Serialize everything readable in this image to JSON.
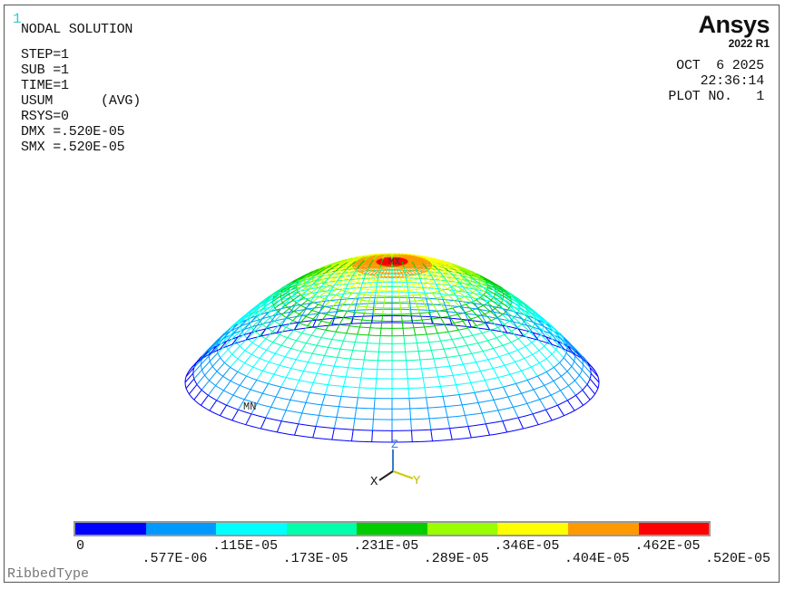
{
  "window_number": "1",
  "title": "NODAL SOLUTION",
  "info": {
    "step": "STEP=1",
    "sub": "SUB =1",
    "time": "TIME=1",
    "usum": "USUM      (AVG)",
    "rsys": "RSYS=0",
    "dmx": "DMX =.520E-05",
    "smx": "SMX =.520E-05"
  },
  "logo": {
    "brand": "Ansys",
    "version": "2022 R1"
  },
  "stamp": {
    "date": "OCT  6 2025",
    "time": "22:36:14",
    "plot": "PLOT NO.   1"
  },
  "markers": {
    "max": "MX",
    "min": "MN"
  },
  "triad": {
    "x": "X",
    "y": "Y",
    "z": "Z"
  },
  "legend": {
    "colors": [
      "#0000ff",
      "#0099ff",
      "#00ffff",
      "#00ffaa",
      "#00cc00",
      "#99ff00",
      "#ffff00",
      "#ff9900",
      "#ff0000"
    ],
    "labels": [
      "0",
      ".577E-06",
      ".115E-05",
      ".173E-05",
      ".231E-05",
      ".289E-05",
      ".346E-05",
      ".404E-05",
      ".462E-05",
      ".520E-05"
    ]
  },
  "footer": "RibbedType"
}
